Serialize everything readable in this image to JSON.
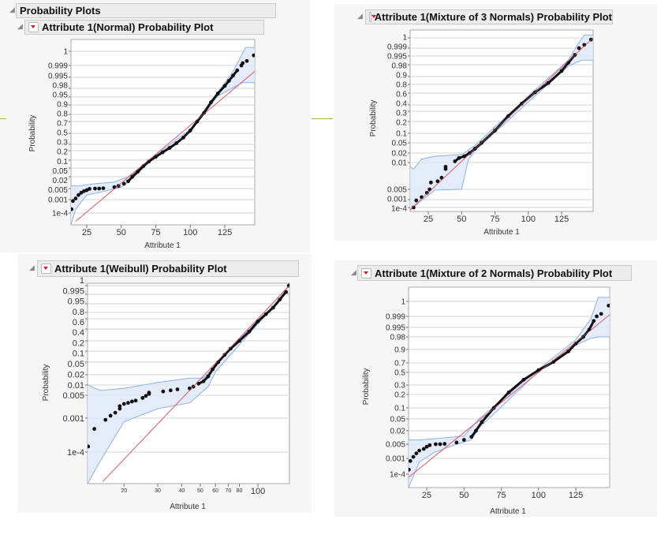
{
  "header": {
    "title": "Probability Plots"
  },
  "colors": {
    "points": "#111111",
    "fit_line": "#e0606e",
    "band_fill": "#dfe9f8",
    "band_stroke": "#8db2e6",
    "grid": "#d4d4d4",
    "dropdown": "#d0202a"
  },
  "chart_data": [
    {
      "type": "scatter",
      "title": "Attribute 1(Normal) Probability Plot",
      "xlabel": "Attribute 1",
      "ylabel": "Probability",
      "x_scale": "linear",
      "xlim": [
        13.6,
        146.7
      ],
      "xticks": [
        "25",
        "50",
        "75",
        "100",
        "125"
      ],
      "yticks": [
        "1",
        "0.999",
        "0.995",
        "0.98",
        "0.95",
        "0.9",
        "0.8",
        "0.7",
        "0.5",
        "0.3",
        "0.2",
        "0.1",
        "0.05",
        "0.02",
        "0.005",
        "0.001",
        "1e-4"
      ],
      "points": [
        [
          14,
          0.0002
        ],
        [
          15,
          0.0008
        ],
        [
          17,
          0.0012
        ],
        [
          19,
          0.002
        ],
        [
          21,
          0.0028
        ],
        [
          23,
          0.0035
        ],
        [
          25,
          0.004
        ],
        [
          27,
          0.0048
        ],
        [
          31,
          0.005
        ],
        [
          34,
          0.005
        ],
        [
          37,
          0.0052
        ],
        [
          45,
          0.006
        ],
        [
          48,
          0.007
        ],
        [
          52,
          0.009
        ],
        [
          55,
          0.012
        ],
        [
          58,
          0.02
        ],
        [
          62,
          0.035
        ],
        [
          66,
          0.06
        ],
        [
          70,
          0.09
        ],
        [
          75,
          0.13
        ],
        [
          80,
          0.18
        ],
        [
          85,
          0.24
        ],
        [
          90,
          0.32
        ],
        [
          95,
          0.42
        ],
        [
          100,
          0.55
        ],
        [
          105,
          0.7
        ],
        [
          110,
          0.82
        ],
        [
          115,
          0.92
        ],
        [
          120,
          0.965
        ],
        [
          125,
          0.985
        ],
        [
          128,
          0.992
        ],
        [
          131,
          0.996
        ],
        [
          134,
          0.998
        ],
        [
          137,
          0.999
        ],
        [
          138,
          0.9993
        ],
        [
          141,
          0.9995
        ],
        [
          146,
          0.9998
        ]
      ],
      "fit_line": [
        [
          17,
          2e-05
        ],
        [
          146.7,
          0.9977
        ]
      ],
      "confidence_band": {
        "upper": [
          [
            13.6,
            0.007
          ],
          [
            20,
            0.007
          ],
          [
            30,
            0.009
          ],
          [
            45,
            0.011
          ],
          [
            55,
            0.02
          ],
          [
            70,
            0.1
          ],
          [
            100,
            0.57
          ],
          [
            120,
            0.97
          ],
          [
            130,
            0.997
          ],
          [
            135,
            0.9995
          ],
          [
            140,
            0.99995
          ],
          [
            146.7,
            0.99995
          ]
        ],
        "lower": [
          [
            13.6,
            1e-05
          ],
          [
            17,
            0.0002
          ],
          [
            25,
            0.002
          ],
          [
            35,
            0.003
          ],
          [
            50,
            0.006
          ],
          [
            58,
            0.016
          ],
          [
            70,
            0.08
          ],
          [
            100,
            0.52
          ],
          [
            120,
            0.955
          ],
          [
            130,
            0.98
          ],
          [
            138,
            0.99
          ],
          [
            146.7,
            0.99
          ]
        ]
      }
    },
    {
      "type": "scatter",
      "title": "Attribute 1(Mixture of 3 Normals) Probability Plot",
      "xlabel": "Attribute 1",
      "ylabel": "Probability",
      "x_scale": "linear",
      "xlim": [
        11.4,
        148.6
      ],
      "xticks": [
        "25",
        "50",
        "75",
        "100",
        "125"
      ],
      "yticks": [
        "1",
        "0.999",
        "0.995",
        "0.98",
        "0.9",
        "0.8",
        "0.6",
        "0.4",
        "0.3",
        "0.2",
        "0.1",
        "0.05",
        "0.02",
        "0.01",
        "0.005",
        "0.001",
        "1e-4"
      ],
      "points": [
        [
          14,
          0.0001
        ],
        [
          16,
          0.0008
        ],
        [
          20,
          0.0015
        ],
        [
          24,
          0.003
        ],
        [
          26,
          0.005
        ],
        [
          27,
          0.006
        ],
        [
          32,
          0.0062
        ],
        [
          35,
          0.0068
        ],
        [
          38,
          0.0085
        ],
        [
          38,
          0.009
        ],
        [
          45,
          0.011
        ],
        [
          48,
          0.014
        ],
        [
          52,
          0.016
        ],
        [
          56,
          0.02
        ],
        [
          60,
          0.03
        ],
        [
          65,
          0.05
        ],
        [
          75,
          0.12
        ],
        [
          85,
          0.25
        ],
        [
          95,
          0.42
        ],
        [
          105,
          0.62
        ],
        [
          115,
          0.82
        ],
        [
          125,
          0.95
        ],
        [
          130,
          0.985
        ],
        [
          135,
          0.996
        ],
        [
          138,
          0.999
        ],
        [
          142,
          0.9995
        ],
        [
          147,
          0.99985
        ]
      ],
      "fit_line": [
        [
          11.4,
          5e-05
        ],
        [
          148.6,
          0.9999
        ]
      ],
      "confidence_band": {
        "upper": [
          [
            11.4,
            0.009
          ],
          [
            14,
            0.0085
          ],
          [
            20,
            0.013
          ],
          [
            30,
            0.016
          ],
          [
            50,
            0.018
          ],
          [
            60,
            0.04
          ],
          [
            100,
            0.55
          ],
          [
            130,
            0.99
          ],
          [
            138,
            0.9997
          ],
          [
            142,
            0.99995
          ],
          [
            148.6,
            0.99995
          ]
        ],
        "lower": [
          [
            11.4,
            4e-05
          ],
          [
            20,
            0.0008
          ],
          [
            30,
            0.0045
          ],
          [
            50,
            0.005
          ],
          [
            55,
            0.012
          ],
          [
            60,
            0.025
          ],
          [
            100,
            0.45
          ],
          [
            130,
            0.975
          ],
          [
            140,
            0.99
          ],
          [
            148.6,
            0.99
          ]
        ]
      }
    },
    {
      "type": "scatter",
      "title": "Attribute 1(Weibull) Probability Plot",
      "xlabel": "Attribute 1",
      "ylabel": "Probability",
      "x_scale": "log",
      "xlim": [
        12.9,
        146
      ],
      "xticks": [
        "20",
        "30",
        "40",
        "50",
        "60",
        "70",
        "80",
        "100"
      ],
      "yticks": [
        "1",
        "0.995",
        "0.95",
        "0.8",
        "0.6",
        "0.4",
        "0.2",
        "0.1",
        "0.05",
        "0.02",
        "0.01",
        "0.005",
        "0.001",
        "1e-4"
      ],
      "points": [
        [
          13,
          0.00015
        ],
        [
          14,
          0.0005
        ],
        [
          16,
          0.0009
        ],
        [
          17,
          0.0012
        ],
        [
          18,
          0.0015
        ],
        [
          19,
          0.002
        ],
        [
          19,
          0.0024
        ],
        [
          20,
          0.0028
        ],
        [
          21,
          0.003
        ],
        [
          22,
          0.0033
        ],
        [
          23,
          0.0035
        ],
        [
          25,
          0.0042
        ],
        [
          26,
          0.0048
        ],
        [
          27,
          0.0055
        ],
        [
          27,
          0.006
        ],
        [
          32,
          0.0065
        ],
        [
          35,
          0.007
        ],
        [
          38,
          0.0075
        ],
        [
          44,
          0.008
        ],
        [
          46,
          0.009
        ],
        [
          49,
          0.011
        ],
        [
          52,
          0.013
        ],
        [
          55,
          0.018
        ],
        [
          58,
          0.03
        ],
        [
          62,
          0.05
        ],
        [
          67,
          0.08
        ],
        [
          72,
          0.12
        ],
        [
          80,
          0.2
        ],
        [
          90,
          0.35
        ],
        [
          100,
          0.55
        ],
        [
          110,
          0.75
        ],
        [
          120,
          0.9
        ],
        [
          130,
          0.98
        ],
        [
          140,
          0.998
        ],
        [
          145,
          0.9999
        ]
      ],
      "fit_line": [
        [
          15.5,
          1e-05
        ],
        [
          146,
          0.9999
        ]
      ],
      "confidence_band": {
        "upper": [
          [
            12.9,
            0.01
          ],
          [
            15,
            0.007
          ],
          [
            20,
            0.008
          ],
          [
            30,
            0.012
          ],
          [
            44,
            0.016
          ],
          [
            52,
            0.016
          ],
          [
            60,
            0.04
          ],
          [
            100,
            0.6
          ],
          [
            140,
            0.9995
          ],
          [
            146,
            0.99995
          ]
        ],
        "lower": [
          [
            12.9,
            5e-06
          ],
          [
            15,
            5e-05
          ],
          [
            20,
            0.0008
          ],
          [
            30,
            0.002
          ],
          [
            44,
            0.003
          ],
          [
            55,
            0.009
          ],
          [
            60,
            0.025
          ],
          [
            100,
            0.5
          ],
          [
            140,
            0.997
          ],
          [
            146,
            0.995
          ]
        ]
      }
    },
    {
      "type": "scatter",
      "title": "Attribute 1(Mixture of 2 Normals) Probability Plot",
      "xlabel": "Attribute 1",
      "ylabel": "Probability",
      "x_scale": "linear",
      "xlim": [
        12.8,
        147.7
      ],
      "xticks": [
        "25",
        "50",
        "75",
        "100",
        "125"
      ],
      "yticks": [
        "1",
        "0.999",
        "0.995",
        "0.98",
        "0.9",
        "0.7",
        "0.5",
        "0.3",
        "0.2",
        "0.1",
        "0.05",
        "0.02",
        "0.005",
        "0.001",
        "1e-4"
      ],
      "points": [
        [
          13,
          0.0002
        ],
        [
          14,
          0.0007
        ],
        [
          16,
          0.0012
        ],
        [
          18,
          0.0018
        ],
        [
          20,
          0.0025
        ],
        [
          23,
          0.003
        ],
        [
          25,
          0.0038
        ],
        [
          27,
          0.0045
        ],
        [
          31,
          0.005
        ],
        [
          34,
          0.005
        ],
        [
          37,
          0.0052
        ],
        [
          45,
          0.006
        ],
        [
          50,
          0.008
        ],
        [
          55,
          0.011
        ],
        [
          58,
          0.02
        ],
        [
          62,
          0.04
        ],
        [
          70,
          0.1
        ],
        [
          80,
          0.22
        ],
        [
          90,
          0.38
        ],
        [
          100,
          0.55
        ],
        [
          110,
          0.72
        ],
        [
          120,
          0.88
        ],
        [
          125,
          0.95
        ],
        [
          130,
          0.98
        ],
        [
          134,
          0.993
        ],
        [
          137,
          0.998
        ],
        [
          139,
          0.999
        ],
        [
          142,
          0.9993
        ],
        [
          147,
          0.9998
        ]
      ],
      "fit_line": [
        [
          12.8,
          6e-05
        ],
        [
          147.7,
          0.9992
        ]
      ],
      "confidence_band": {
        "upper": [
          [
            12.8,
            0.008
          ],
          [
            20,
            0.008
          ],
          [
            30,
            0.009
          ],
          [
            50,
            0.012
          ],
          [
            60,
            0.05
          ],
          [
            100,
            0.57
          ],
          [
            125,
            0.97
          ],
          [
            135,
            0.9985
          ],
          [
            140,
            0.99995
          ],
          [
            147.7,
            0.99995
          ]
        ],
        "lower": [
          [
            12.8,
            1e-05
          ],
          [
            20,
            0.0006
          ],
          [
            30,
            0.002
          ],
          [
            45,
            0.005
          ],
          [
            55,
            0.008
          ],
          [
            60,
            0.025
          ],
          [
            100,
            0.52
          ],
          [
            125,
            0.94
          ],
          [
            135,
            0.975
          ],
          [
            140,
            0.98
          ],
          [
            147.7,
            0.98
          ]
        ]
      }
    }
  ]
}
